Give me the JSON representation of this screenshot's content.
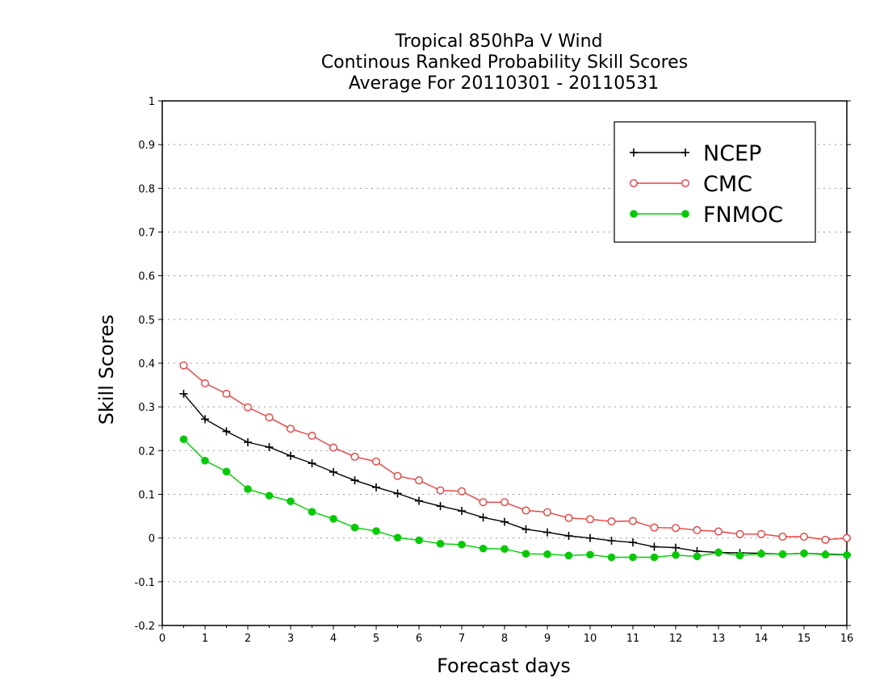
{
  "chart_data": {
    "type": "line",
    "title": [
      "Tropical 850hPa V Wind",
      "Continous Ranked Probability Skill Scores",
      "Average For 20110301 - 20110531"
    ],
    "xlabel": "Forecast days",
    "ylabel": "Skill Scores",
    "xlim": [
      0,
      16
    ],
    "ylim": [
      -0.2,
      1
    ],
    "xticks": [
      "0",
      "1",
      "2",
      "3",
      "4",
      "5",
      "6",
      "7",
      "8",
      "9",
      "10",
      "11",
      "12",
      "13",
      "14",
      "15",
      "16"
    ],
    "yticks": [
      "-0.2",
      "-0.1",
      "0",
      "0.1",
      "0.2",
      "0.3",
      "0.4",
      "0.5",
      "0.6",
      "0.7",
      "0.8",
      "0.9",
      "1"
    ],
    "grid": true,
    "legend_position": "top-right",
    "x": [
      0.5,
      1,
      1.5,
      2,
      2.5,
      3,
      3.5,
      4,
      4.5,
      5,
      5.5,
      6,
      6.5,
      7,
      7.5,
      8,
      8.5,
      9,
      9.5,
      10,
      10.5,
      11,
      11.5,
      12,
      12.5,
      13,
      13.5,
      14,
      14.5,
      15,
      15.5,
      16
    ],
    "series": [
      {
        "name": "NCEP",
        "color": "#000000",
        "marker": "plus",
        "values": [
          0.33,
          0.272,
          0.244,
          0.219,
          0.208,
          0.188,
          0.171,
          0.151,
          0.132,
          0.116,
          0.102,
          0.085,
          0.073,
          0.062,
          0.047,
          0.037,
          0.02,
          0.013,
          0.005,
          0.0,
          -0.006,
          -0.01,
          -0.02,
          -0.022,
          -0.03,
          -0.033,
          -0.034,
          -0.035,
          -0.037,
          -0.035,
          -0.037,
          -0.038
        ]
      },
      {
        "name": "CMC",
        "color": "#e8413f",
        "marker": "open-circle",
        "values": [
          0.395,
          0.354,
          0.33,
          0.299,
          0.276,
          0.25,
          0.234,
          0.207,
          0.186,
          0.175,
          0.142,
          0.132,
          0.109,
          0.107,
          0.082,
          0.082,
          0.063,
          0.059,
          0.046,
          0.043,
          0.038,
          0.039,
          0.024,
          0.023,
          0.018,
          0.015,
          0.009,
          0.009,
          0.003,
          0.003,
          -0.004,
          0.0
        ]
      },
      {
        "name": "FNMOC",
        "color": "#00cc00",
        "marker": "filled-circle",
        "values": [
          0.226,
          0.177,
          0.152,
          0.112,
          0.097,
          0.084,
          0.06,
          0.044,
          0.024,
          0.016,
          0.001,
          -0.005,
          -0.013,
          -0.015,
          -0.024,
          -0.025,
          -0.036,
          -0.037,
          -0.04,
          -0.038,
          -0.044,
          -0.044,
          -0.044,
          -0.039,
          -0.042,
          -0.033,
          -0.04,
          -0.036,
          -0.037,
          -0.035,
          -0.038,
          -0.039
        ]
      }
    ]
  }
}
